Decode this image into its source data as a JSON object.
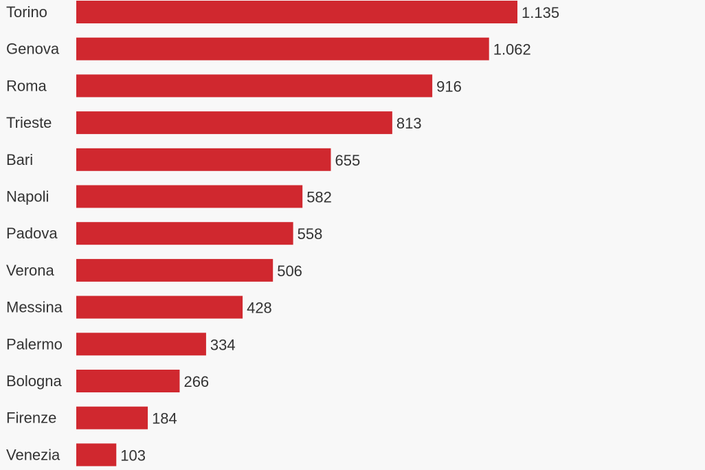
{
  "chart_data": {
    "type": "bar",
    "orientation": "horizontal",
    "categories": [
      "Torino",
      "Genova",
      "Roma",
      "Trieste",
      "Bari",
      "Napoli",
      "Padova",
      "Verona",
      "Messina",
      "Palermo",
      "Bologna",
      "Firenze",
      "Venezia"
    ],
    "values": [
      1135,
      1062,
      916,
      813,
      655,
      582,
      558,
      506,
      428,
      334,
      266,
      184,
      103
    ],
    "value_labels": [
      "1.135",
      "1.062",
      "916",
      "813",
      "655",
      "582",
      "558",
      "506",
      "428",
      "334",
      "266",
      "184",
      "103"
    ],
    "xlim": [
      0,
      1135
    ],
    "bar_color": "#d0282f",
    "background_color": "#f8f8f8",
    "text_color": "#333333",
    "title": "",
    "xlabel": "",
    "ylabel": ""
  }
}
